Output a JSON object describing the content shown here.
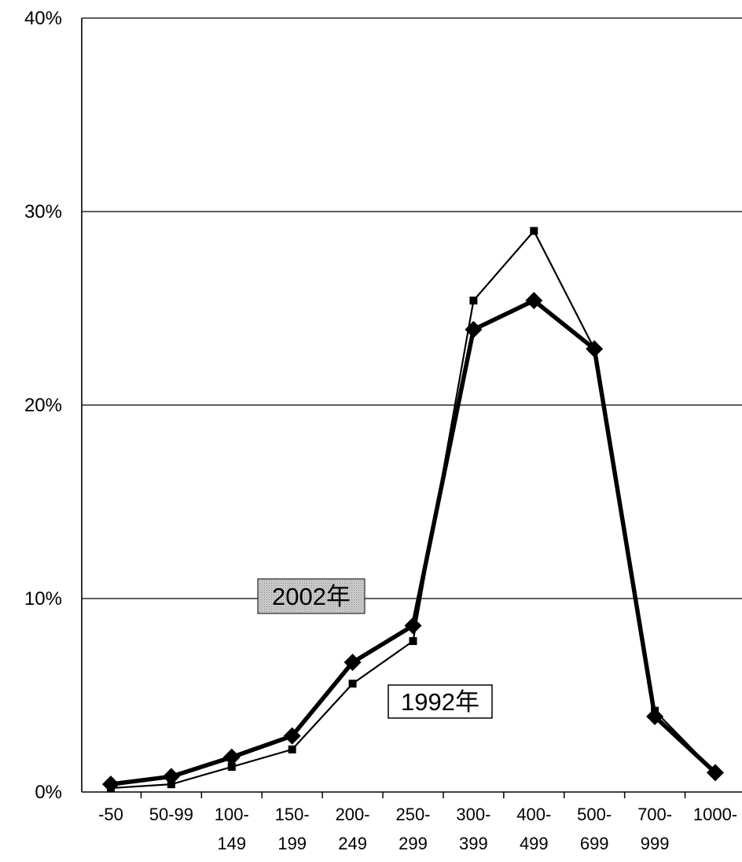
{
  "chart_data": {
    "type": "line",
    "title": "",
    "xlabel": "",
    "ylabel": "",
    "categories": [
      [
        "-50"
      ],
      [
        "50-99"
      ],
      [
        "100-",
        "149"
      ],
      [
        "150-",
        "199"
      ],
      [
        "200-",
        "249"
      ],
      [
        "250-",
        "299"
      ],
      [
        "300-",
        "399"
      ],
      [
        "400-",
        "499"
      ],
      [
        "500-",
        "699"
      ],
      [
        "700-",
        "999"
      ],
      [
        "1000-"
      ]
    ],
    "ylim": [
      0,
      40
    ],
    "yticks": [
      0,
      10,
      20,
      30,
      40
    ],
    "ytick_labels": [
      "0%",
      "10%",
      "20%",
      "30%",
      "40%"
    ],
    "grid": true,
    "series": [
      {
        "name": "2002年",
        "marker": "diamond",
        "line": "thick",
        "values": [
          0.4,
          0.8,
          1.8,
          2.9,
          6.7,
          8.6,
          23.9,
          25.4,
          22.9,
          3.9,
          1.0
        ]
      },
      {
        "name": "1992年",
        "marker": "square",
        "line": "thin",
        "values": [
          0.2,
          0.4,
          1.3,
          2.2,
          5.6,
          7.8,
          25.4,
          29.0,
          22.9,
          4.2,
          1.0
        ]
      }
    ],
    "labels": [
      {
        "text": "2002年",
        "series": 0,
        "style": "shaded-box"
      },
      {
        "text": "1992年",
        "series": 1,
        "style": "outline-box"
      }
    ]
  }
}
